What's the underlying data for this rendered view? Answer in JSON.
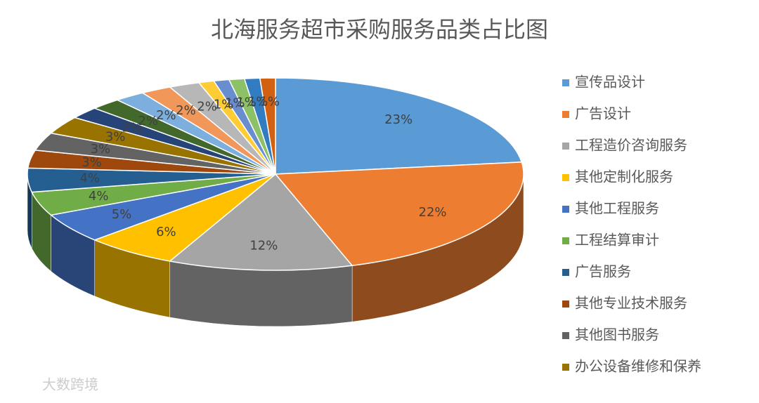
{
  "chart_data": {
    "type": "pie3d",
    "title": "北海服务超市采购服务品类占比图",
    "categories": [
      "宣传品设计",
      "广告设计",
      "工程造价咨询服务",
      "其他定制化服务",
      "其他工程服务",
      "工程结算审计",
      "广告服务",
      "其他专业技术服务",
      "其他图书服务",
      "办公设备维修和保养",
      null,
      null,
      null,
      null,
      null,
      null,
      null,
      null,
      null,
      null
    ],
    "values": [
      23,
      22,
      12,
      6,
      5,
      4,
      4,
      3,
      3,
      3,
      2,
      2,
      2,
      2,
      2,
      1,
      1,
      1,
      1,
      1
    ],
    "value_labels": [
      "23%",
      "22%",
      "12%",
      "6%",
      "5%",
      "4%",
      "4%",
      "3%",
      "3%",
      "3%",
      "2%",
      "2%",
      "2%",
      "2%",
      "2%",
      "1%",
      "1%",
      "1%",
      "1%",
      "1%"
    ],
    "colors": [
      "#5b9bd5",
      "#ed7d31",
      "#a5a5a5",
      "#ffc000",
      "#4472c4",
      "#70ad47",
      "#255e91",
      "#9e480e",
      "#636363",
      "#997300",
      "#264478",
      "#43682b",
      "#7cafdd",
      "#f1975a",
      "#b7b7b7",
      "#ffcd33",
      "#698ed0",
      "#8cc168",
      "#327dc2",
      "#d26012"
    ],
    "legend": "right"
  },
  "watermark": "大数跨境"
}
